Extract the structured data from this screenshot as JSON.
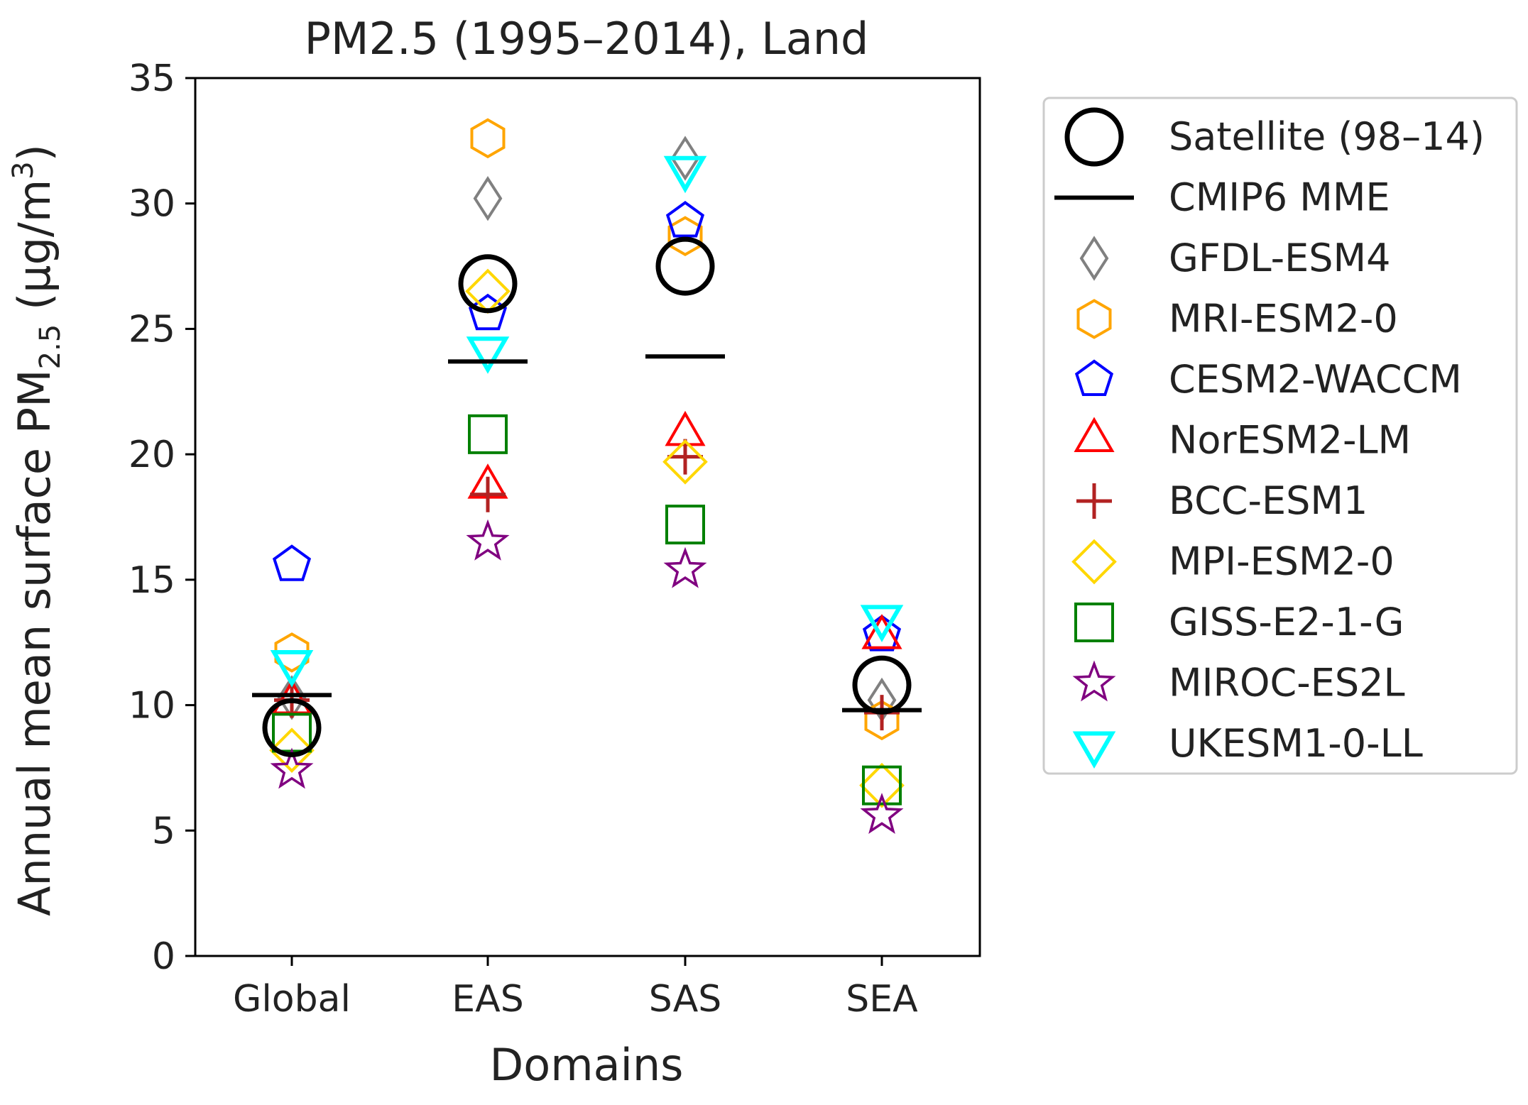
{
  "chart_data": {
    "type": "scatter",
    "title": "PM2.5 (1995–2014), Land",
    "xlabel": "Domains",
    "ylabel_prefix": "Annual mean surface PM",
    "ylabel_sub": "2.5",
    "ylabel_unit_open": " (µg/m",
    "ylabel_unit_sup": "3",
    "ylabel_unit_close": ")",
    "categories": [
      "Global",
      "EAS",
      "SAS",
      "SEA"
    ],
    "ylim": [
      0,
      35
    ],
    "yticks": [
      0,
      5,
      10,
      15,
      20,
      25,
      30,
      35
    ],
    "grid": false,
    "legend_position": "outside-right",
    "series": [
      {
        "name": "Satellite (98–14)",
        "marker": "circle",
        "color": "#000000",
        "values": [
          9.1,
          26.8,
          27.5,
          10.8
        ]
      },
      {
        "name": "CMIP6 MME",
        "marker": "hline",
        "color": "#000000",
        "values": [
          10.4,
          23.7,
          23.9,
          9.8
        ]
      },
      {
        "name": "GFDL-ESM4",
        "marker": "thin_diamond",
        "color": "#808080",
        "values": [
          10.3,
          30.2,
          31.8,
          10.2
        ]
      },
      {
        "name": "MRI-ESM2-0",
        "marker": "hexagon",
        "color": "#ffa500",
        "values": [
          12.1,
          32.6,
          28.7,
          9.4
        ]
      },
      {
        "name": "CESM2-WACCM",
        "marker": "pentagon",
        "color": "#0000ff",
        "values": [
          15.6,
          25.6,
          29.3,
          12.8
        ]
      },
      {
        "name": "NorESM2-LM",
        "marker": "triangle_up",
        "color": "#ff0000",
        "values": [
          10.1,
          18.7,
          20.8,
          12.7
        ]
      },
      {
        "name": "BCC-ESM1",
        "marker": "plus",
        "color": "#b22222",
        "values": [
          10.2,
          18.4,
          19.9,
          9.7
        ]
      },
      {
        "name": "MPI-ESM2-0",
        "marker": "diamond",
        "color": "#ffd700",
        "values": [
          8.2,
          26.5,
          19.7,
          6.8
        ]
      },
      {
        "name": "GISS-E2-1-G",
        "marker": "square",
        "color": "#008000",
        "values": [
          8.9,
          20.8,
          17.2,
          6.8
        ]
      },
      {
        "name": "MIROC-ES2L",
        "marker": "star",
        "color": "#800080",
        "values": [
          7.4,
          16.5,
          15.4,
          5.6
        ]
      },
      {
        "name": "UKESM1-0-LL",
        "marker": "triangle_down",
        "color": "#00ffff",
        "values": [
          11.7,
          24.2,
          31.4,
          13.5
        ]
      }
    ]
  }
}
